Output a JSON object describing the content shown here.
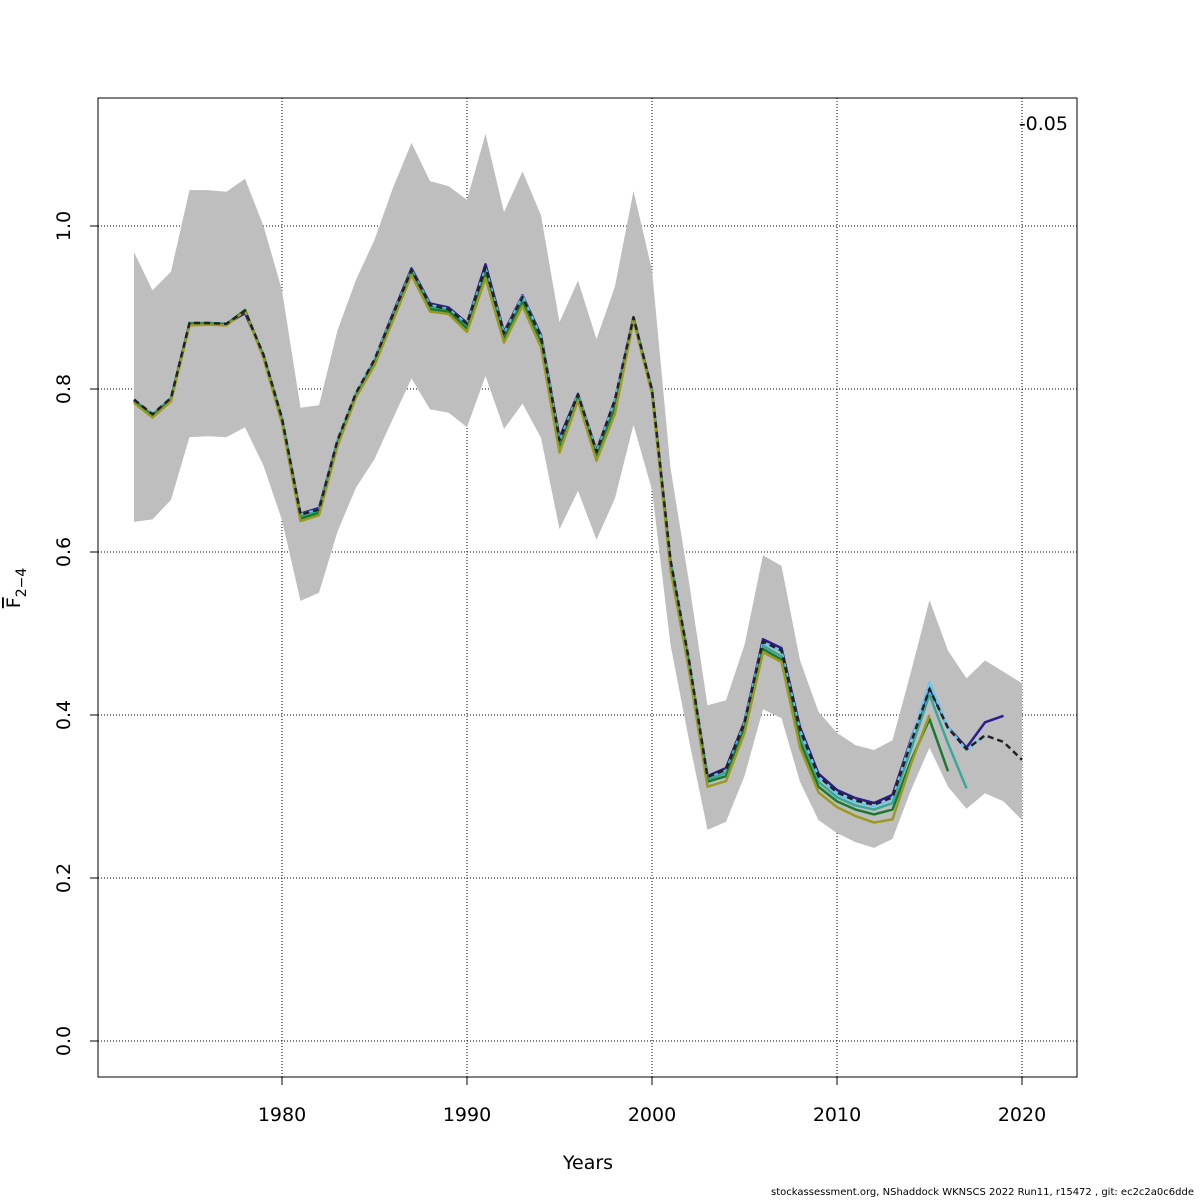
{
  "chart_data": {
    "type": "line",
    "xlabel": "Years",
    "ylabel": "F",
    "ylabel_subscript": "2−4",
    "annotation": "-0.05",
    "xlim": [
      1970,
      2023
    ],
    "ylim": [
      -0.045,
      1.155
    ],
    "xticks": [
      1980,
      1990,
      2000,
      2010,
      2020
    ],
    "yticks": [
      0.0,
      0.2,
      0.4,
      0.6,
      0.8,
      1.0
    ],
    "ytick_labels": [
      "0.0",
      "0.2",
      "0.4",
      "0.6",
      "0.8",
      "1.0"
    ],
    "grid": true,
    "band_color": "#bebebe",
    "confidence_band": {
      "x_start": 1972,
      "upper": [
        0.968,
        0.921,
        0.944,
        1.044,
        1.044,
        1.042,
        1.058,
        1.0,
        0.921,
        0.777,
        0.78,
        0.872,
        0.934,
        0.983,
        1.047,
        1.102,
        1.055,
        1.049,
        1.032,
        1.113,
        1.017,
        1.067,
        1.013,
        0.882,
        0.933,
        0.861,
        0.926,
        1.043,
        0.946,
        0.703,
        0.563,
        0.412,
        0.418,
        0.486,
        0.596,
        0.583,
        0.467,
        0.404,
        0.378,
        0.363,
        0.357,
        0.369,
        0.453,
        0.541,
        0.479,
        0.445,
        0.467,
        0.453,
        0.439
      ],
      "lower": [
        0.637,
        0.64,
        0.664,
        0.741,
        0.742,
        0.741,
        0.753,
        0.706,
        0.639,
        0.54,
        0.55,
        0.625,
        0.679,
        0.714,
        0.764,
        0.813,
        0.775,
        0.771,
        0.753,
        0.816,
        0.751,
        0.782,
        0.74,
        0.628,
        0.675,
        0.615,
        0.666,
        0.756,
        0.676,
        0.486,
        0.369,
        0.259,
        0.269,
        0.325,
        0.407,
        0.396,
        0.318,
        0.271,
        0.255,
        0.244,
        0.237,
        0.248,
        0.308,
        0.36,
        0.312,
        0.285,
        0.304,
        0.294,
        0.271
      ]
    },
    "series": [
      {
        "color": "#2b1d8c",
        "dashed": false,
        "x_start": 1972,
        "values": [
          0.787,
          0.769,
          0.789,
          0.88,
          0.881,
          0.88,
          0.893,
          0.842,
          0.764,
          0.647,
          0.654,
          0.737,
          0.795,
          0.836,
          0.893,
          0.948,
          0.905,
          0.9,
          0.881,
          0.953,
          0.87,
          0.915,
          0.866,
          0.74,
          0.794,
          0.724,
          0.787,
          0.888,
          0.799,
          0.59,
          0.467,
          0.325,
          0.335,
          0.392,
          0.493,
          0.482,
          0.385,
          0.328,
          0.308,
          0.298,
          0.292,
          0.302,
          0.37,
          0.434,
          0.385,
          0.36,
          0.391,
          0.399
        ]
      },
      {
        "color": "#6ec6ee",
        "dashed": false,
        "x_start": 1972,
        "values": [
          0.787,
          0.769,
          0.789,
          0.881,
          0.881,
          0.88,
          0.896,
          0.842,
          0.764,
          0.646,
          0.652,
          0.737,
          0.795,
          0.836,
          0.891,
          0.946,
          0.903,
          0.898,
          0.88,
          0.948,
          0.868,
          0.914,
          0.864,
          0.736,
          0.793,
          0.722,
          0.786,
          0.887,
          0.798,
          0.589,
          0.466,
          0.323,
          0.331,
          0.39,
          0.489,
          0.478,
          0.381,
          0.324,
          0.303,
          0.293,
          0.288,
          0.297,
          0.368,
          0.44,
          0.385,
          0.357,
          0.375
        ]
      },
      {
        "color": "#3aa898",
        "dashed": false,
        "x_start": 1972,
        "values": [
          0.786,
          0.768,
          0.788,
          0.881,
          0.881,
          0.88,
          0.897,
          0.841,
          0.762,
          0.644,
          0.65,
          0.735,
          0.793,
          0.834,
          0.889,
          0.945,
          0.901,
          0.897,
          0.877,
          0.944,
          0.865,
          0.91,
          0.86,
          0.731,
          0.791,
          0.719,
          0.781,
          0.887,
          0.797,
          0.586,
          0.463,
          0.321,
          0.329,
          0.387,
          0.485,
          0.472,
          0.373,
          0.318,
          0.299,
          0.289,
          0.284,
          0.292,
          0.358,
          0.425,
          0.365,
          0.31
        ]
      },
      {
        "color": "#1a7a30",
        "dashed": false,
        "x_start": 1972,
        "values": [
          0.785,
          0.767,
          0.787,
          0.88,
          0.88,
          0.879,
          0.897,
          0.84,
          0.76,
          0.641,
          0.648,
          0.733,
          0.792,
          0.832,
          0.887,
          0.943,
          0.898,
          0.895,
          0.874,
          0.94,
          0.861,
          0.906,
          0.856,
          0.727,
          0.789,
          0.716,
          0.776,
          0.886,
          0.796,
          0.583,
          0.46,
          0.318,
          0.325,
          0.383,
          0.481,
          0.468,
          0.367,
          0.312,
          0.294,
          0.284,
          0.278,
          0.284,
          0.344,
          0.395,
          0.331
        ]
      },
      {
        "color": "#9a9a22",
        "dashed": false,
        "x_start": 1972,
        "values": [
          0.783,
          0.765,
          0.785,
          0.878,
          0.879,
          0.878,
          0.896,
          0.838,
          0.758,
          0.638,
          0.645,
          0.73,
          0.79,
          0.829,
          0.884,
          0.94,
          0.895,
          0.892,
          0.87,
          0.936,
          0.857,
          0.902,
          0.851,
          0.722,
          0.786,
          0.712,
          0.77,
          0.884,
          0.794,
          0.578,
          0.455,
          0.312,
          0.319,
          0.378,
          0.477,
          0.465,
          0.36,
          0.305,
          0.287,
          0.276,
          0.268,
          0.272,
          0.34,
          0.4
        ]
      },
      {
        "color": "#222222",
        "dashed": true,
        "x_start": 1972,
        "values": [
          0.787,
          0.769,
          0.789,
          0.881,
          0.881,
          0.88,
          0.896,
          0.842,
          0.764,
          0.646,
          0.652,
          0.737,
          0.795,
          0.836,
          0.891,
          0.946,
          0.903,
          0.898,
          0.88,
          0.949,
          0.868,
          0.913,
          0.864,
          0.737,
          0.793,
          0.723,
          0.787,
          0.888,
          0.799,
          0.59,
          0.467,
          0.324,
          0.333,
          0.39,
          0.49,
          0.479,
          0.382,
          0.325,
          0.305,
          0.295,
          0.29,
          0.299,
          0.366,
          0.432,
          0.384,
          0.358,
          0.375,
          0.367,
          0.345
        ]
      }
    ]
  },
  "footer": "stockassessment.org, NShaddock  WKNSCS  2022  Run11, r15472 , git: ec2c2a0c6dde"
}
